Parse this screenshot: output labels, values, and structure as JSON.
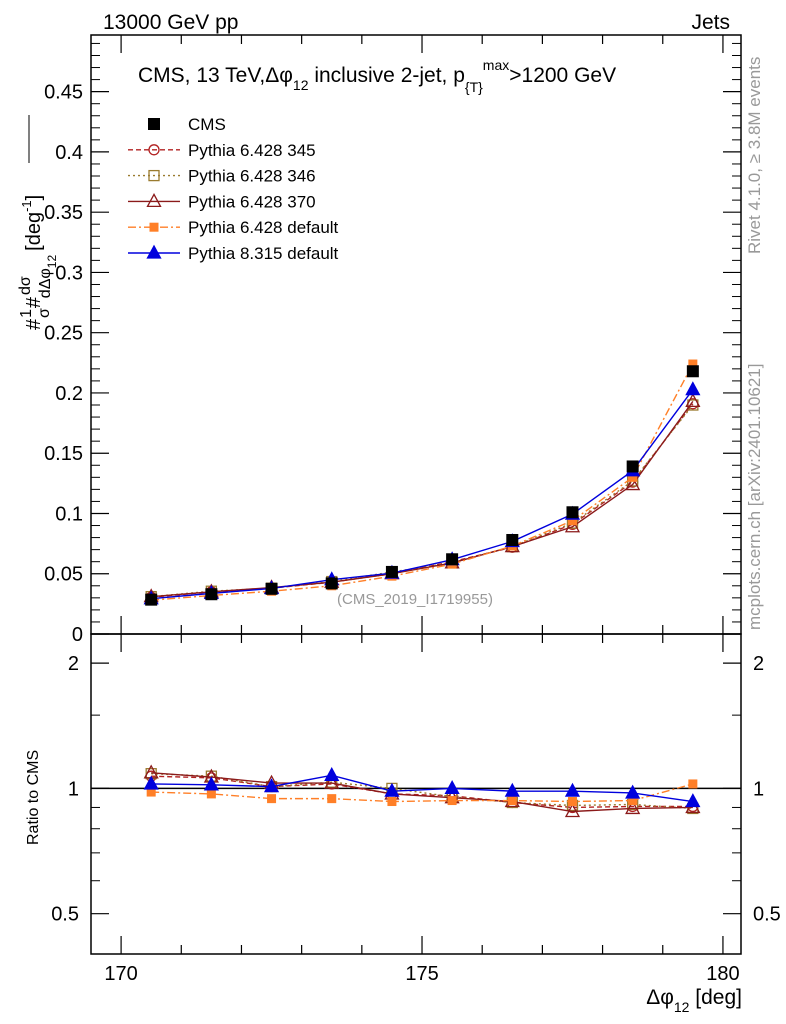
{
  "header": {
    "left": "13000 GeV pp",
    "right": "Jets"
  },
  "side_text": {
    "top": "Rivet 4.1.0, ≥ 3.8M events",
    "bottom": "mcplots.cern.ch [arXiv:2401.10621]"
  },
  "colors": {
    "cms": "#000000",
    "p345": "#b22222",
    "p346": "#9a7b2f",
    "p370": "#8b1a1a",
    "p6def": "#ff7f27",
    "p8def": "#0000dd"
  },
  "chart_data": {
    "type": "line",
    "title": "CMS, 13 TeV, Δφ₁₂ inclusive 2-jet,  p_T^max > 1200 GeV",
    "title_parts": {
      "main": "CMS, 13 TeV,",
      "dphi": "Δφ",
      "sub12": "12",
      "rest": " inclusive 2-jet,  p",
      "subT": "{T}",
      "supmax": "max",
      "cut": ">1200 GeV"
    },
    "watermark": "(CMS_2019_I1719955)",
    "ylabel_main": {
      "hash": "#",
      "one": "1",
      "sigma": "σ",
      "hash2": "#",
      "d": "dσ",
      "dd": "dΔφ",
      "sub": "12",
      "unit": "[deg",
      "unitsup": "-1",
      "close": "]"
    },
    "xlabel": {
      "dphi": "Δφ",
      "sub": "12",
      "unit": " [deg]"
    },
    "ratio_ylabel": "Ratio to CMS",
    "xlim": [
      169.5,
      180.3
    ],
    "ylim_main": [
      0,
      0.497
    ],
    "ylim_ratio_log": [
      0.4,
      2.35
    ],
    "x_ticks": [
      170,
      175,
      180
    ],
    "x_tick_labels": [
      "170",
      "175",
      "180"
    ],
    "y_ticks_main": [
      0,
      0.05,
      0.1,
      0.15,
      0.2,
      0.25,
      0.3,
      0.35,
      0.4,
      0.45
    ],
    "y_tick_labels_main": [
      "0",
      "0.05",
      "0.1",
      "0.15",
      "0.2",
      "0.25",
      "0.3",
      "0.35",
      "0.4",
      "0.45"
    ],
    "y_ticks_ratio": [
      0.5,
      1,
      2
    ],
    "y_tick_labels_ratio": [
      "0.5",
      "1",
      "2"
    ],
    "x": [
      170.5,
      171.5,
      172.5,
      173.5,
      174.5,
      175.5,
      176.5,
      177.5,
      178.5,
      179.5
    ],
    "series": [
      {
        "key": "cms",
        "name": "CMS",
        "values": [
          0.0285,
          0.033,
          0.0375,
          0.042,
          0.0515,
          0.062,
          0.078,
          0.101,
          0.139,
          0.218
        ]
      },
      {
        "key": "p345",
        "name": "Pythia 6.428 345",
        "values": [
          0.0305,
          0.035,
          0.038,
          0.043,
          0.05,
          0.06,
          0.072,
          0.091,
          0.126,
          0.191
        ]
      },
      {
        "key": "p346",
        "name": "Pythia 6.428 346",
        "values": [
          0.031,
          0.0355,
          0.038,
          0.0435,
          0.0515,
          0.059,
          0.0725,
          0.092,
          0.127,
          0.19
        ]
      },
      {
        "key": "p370",
        "name": "Pythia 6.428 370",
        "values": [
          0.031,
          0.035,
          0.0385,
          0.043,
          0.05,
          0.059,
          0.0725,
          0.089,
          0.124,
          0.193
        ]
      },
      {
        "key": "p6def",
        "name": "Pythia 6.428 default",
        "values": [
          0.028,
          0.032,
          0.0355,
          0.04,
          0.048,
          0.058,
          0.073,
          0.094,
          0.13,
          0.224
        ]
      },
      {
        "key": "p8def",
        "name": "Pythia 8.315 default",
        "values": [
          0.0293,
          0.0337,
          0.0378,
          0.0451,
          0.0505,
          0.0617,
          0.0768,
          0.0995,
          0.1355,
          0.2028
        ]
      }
    ],
    "ratio_series": [
      {
        "key": "p345",
        "values": [
          1.07,
          1.06,
          1.01,
          1.025,
          0.97,
          0.96,
          0.925,
          0.9,
          0.905,
          0.905
        ]
      },
      {
        "key": "p346",
        "values": [
          1.085,
          1.07,
          1.01,
          1.035,
          1.0,
          0.955,
          0.925,
          0.91,
          0.915,
          0.895
        ]
      },
      {
        "key": "p370",
        "values": [
          1.09,
          1.065,
          1.03,
          1.03,
          0.97,
          0.95,
          0.93,
          0.88,
          0.895,
          0.9
        ]
      },
      {
        "key": "p6def",
        "values": [
          0.98,
          0.97,
          0.945,
          0.945,
          0.93,
          0.935,
          0.935,
          0.93,
          0.935,
          1.025
        ]
      },
      {
        "key": "p8def",
        "values": [
          1.025,
          1.02,
          1.01,
          1.075,
          0.985,
          1.0,
          0.985,
          0.985,
          0.975,
          0.93
        ]
      }
    ]
  }
}
